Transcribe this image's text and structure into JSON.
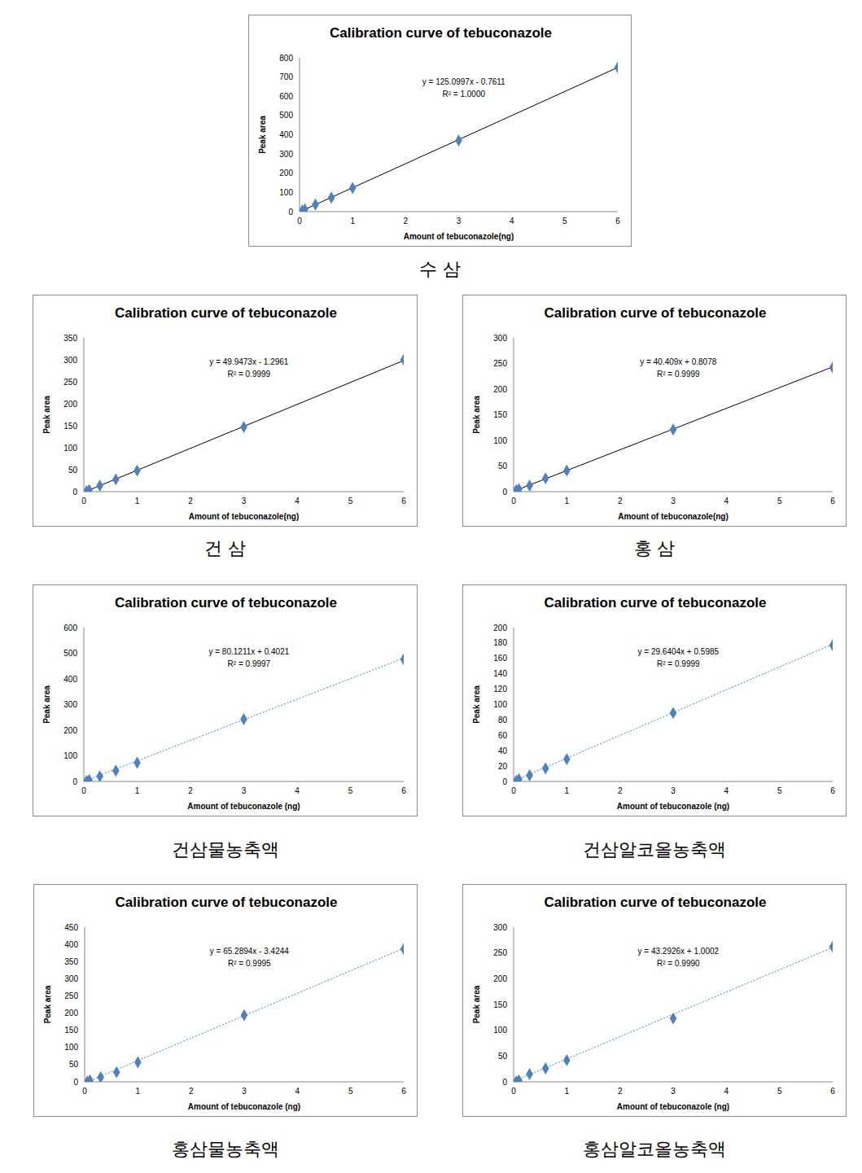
{
  "chart_data": [
    {
      "type": "scatter",
      "caption": "수 삼",
      "title": "Calibration curve of tebuconazole",
      "x_label": "Amount of tebuconazole(ng)",
      "y_label": "Peak area",
      "x": [
        0.05,
        0.1,
        0.3,
        0.6,
        1,
        3,
        6
      ],
      "values": [
        5,
        12,
        37,
        73,
        123,
        370,
        750
      ],
      "color": "#4f81bd",
      "marker": "diamond",
      "xlim": [
        0,
        6
      ],
      "xticks": [
        0,
        1,
        2,
        3,
        4,
        5,
        6
      ],
      "ylim": [
        0,
        800
      ],
      "yticks": [
        0,
        100,
        200,
        300,
        400,
        500,
        600,
        700,
        800
      ],
      "grid": false,
      "fit": {
        "slope": 125.0997,
        "intercept": -0.7611,
        "color": "#000000",
        "line_style": "solid"
      },
      "annotations": [
        "y = 125.0997x - 0.7611",
        "R² = 1.0000"
      ]
    },
    {
      "type": "scatter",
      "caption": "건 삼",
      "title": "Calibration curve of tebuconazole",
      "x_label": "Amount of tebuconazole(ng)",
      "y_label": "Peak area",
      "x": [
        0.05,
        0.1,
        0.3,
        0.6,
        1,
        3,
        6
      ],
      "values": [
        1,
        4,
        14,
        28,
        48,
        147,
        300
      ],
      "color": "#4f81bd",
      "marker": "diamond",
      "xlim": [
        0,
        6
      ],
      "xticks": [
        0,
        1,
        2,
        3,
        4,
        5,
        6
      ],
      "ylim": [
        0,
        350
      ],
      "yticks": [
        0,
        50,
        100,
        150,
        200,
        250,
        300,
        350
      ],
      "grid": false,
      "fit": {
        "slope": 49.9473,
        "intercept": -1.2961,
        "color": "#000000",
        "line_style": "solid"
      },
      "annotations": [
        "y = 49.9473x - 1.2961",
        "R² = 0.9999"
      ]
    },
    {
      "type": "scatter",
      "caption": "홍 삼",
      "title": "Calibration curve of tebuconazole",
      "x_label": "Amount of tebuconazole(ng)",
      "y_label": "Peak area",
      "x": [
        0.05,
        0.1,
        0.3,
        0.6,
        1,
        3,
        6
      ],
      "values": [
        3,
        5,
        12,
        26,
        41,
        121,
        242
      ],
      "color": "#4f81bd",
      "marker": "diamond",
      "xlim": [
        0,
        6
      ],
      "xticks": [
        0,
        1,
        2,
        3,
        4,
        5,
        6
      ],
      "ylim": [
        0,
        300
      ],
      "yticks": [
        0,
        50,
        100,
        150,
        200,
        250,
        300
      ],
      "grid": false,
      "fit": {
        "slope": 40.409,
        "intercept": 0.8078,
        "color": "#000000",
        "line_style": "solid"
      },
      "annotations": [
        "y = 40.409x + 0.8078",
        "R² = 0.9999"
      ]
    },
    {
      "type": "scatter",
      "caption": "건삼물농축액",
      "title": "Calibration curve of tebuconazole",
      "x_label": "Amount of tebuconazole (ng)",
      "y_label": "Peak area",
      "x": [
        0.05,
        0.1,
        0.3,
        0.6,
        1,
        3,
        6
      ],
      "values": [
        2,
        6,
        20,
        42,
        73,
        243,
        476
      ],
      "color": "#4f81bd",
      "marker": "diamond",
      "xlim": [
        0,
        6
      ],
      "xticks": [
        0,
        1,
        2,
        3,
        4,
        5,
        6
      ],
      "ylim": [
        0,
        600
      ],
      "yticks": [
        0,
        100,
        200,
        300,
        400,
        500,
        600
      ],
      "grid": false,
      "fit": {
        "slope": 80.1211,
        "intercept": 0.4021,
        "color": "#4f81bd",
        "line_style": "dotted"
      },
      "annotations": [
        "y = 80.1211x + 0.4021",
        "R² = 0.9997"
      ]
    },
    {
      "type": "scatter",
      "caption": "건삼알코올농축액",
      "title": "Calibration curve of tebuconazole",
      "x_label": "Amount of tebuconazole (ng)",
      "y_label": "Peak area",
      "x": [
        0.05,
        0.1,
        0.3,
        0.6,
        1,
        3,
        6
      ],
      "values": [
        1,
        3,
        8,
        17,
        29,
        89,
        177
      ],
      "color": "#4f81bd",
      "marker": "diamond",
      "xlim": [
        0,
        6
      ],
      "xticks": [
        0,
        1,
        2,
        3,
        4,
        5,
        6
      ],
      "ylim": [
        0,
        200
      ],
      "yticks": [
        0,
        20,
        40,
        60,
        80,
        100,
        120,
        140,
        160,
        180,
        200
      ],
      "grid": false,
      "fit": {
        "slope": 29.6404,
        "intercept": 0.5985,
        "color": "#4f81bd",
        "line_style": "dotted"
      },
      "annotations": [
        "y = 29.6404x + 0.5985",
        "R² = 0.9999"
      ]
    },
    {
      "type": "scatter",
      "caption": "홍삼물농축액",
      "title": "Calibration curve of tebuconazole",
      "x_label": "Amount of tebuconazole (ng)",
      "y_label": "Peak area",
      "x": [
        0.05,
        0.1,
        0.3,
        0.6,
        1,
        3,
        6
      ],
      "values": [
        1,
        4,
        13,
        28,
        57,
        194,
        386
      ],
      "color": "#4f81bd",
      "marker": "diamond",
      "xlim": [
        0,
        6
      ],
      "xticks": [
        0,
        1,
        2,
        3,
        4,
        5,
        6
      ],
      "ylim": [
        0,
        450
      ],
      "yticks": [
        0,
        50,
        100,
        150,
        200,
        250,
        300,
        350,
        400,
        450
      ],
      "grid": false,
      "fit": {
        "slope": 65.2894,
        "intercept": -3.4244,
        "color": "#4f81bd",
        "line_style": "dotted"
      },
      "annotations": [
        "y = 65.2894x - 3.4244",
        "R² = 0.9995"
      ]
    },
    {
      "type": "scatter",
      "caption": "홍삼알코올농축액",
      "title": "Calibration curve of tebuconazole",
      "x_label": "Amount of tebuconazole (ng)",
      "y_label": "Peak area",
      "x": [
        0.05,
        0.1,
        0.3,
        0.6,
        1,
        3,
        6
      ],
      "values": [
        1,
        3,
        15,
        26,
        42,
        123,
        262
      ],
      "color": "#4f81bd",
      "marker": "diamond",
      "xlim": [
        0,
        6
      ],
      "xticks": [
        0,
        1,
        2,
        3,
        4,
        5,
        6
      ],
      "ylim": [
        0,
        300
      ],
      "yticks": [
        0,
        50,
        100,
        150,
        200,
        250,
        300
      ],
      "grid": false,
      "fit": {
        "slope": 43.2926,
        "intercept": 1.0002,
        "color": "#4f81bd",
        "line_style": "dotted"
      },
      "annotations": [
        "y = 43.2926x + 1.0002",
        "R² = 0.9990"
      ]
    }
  ]
}
